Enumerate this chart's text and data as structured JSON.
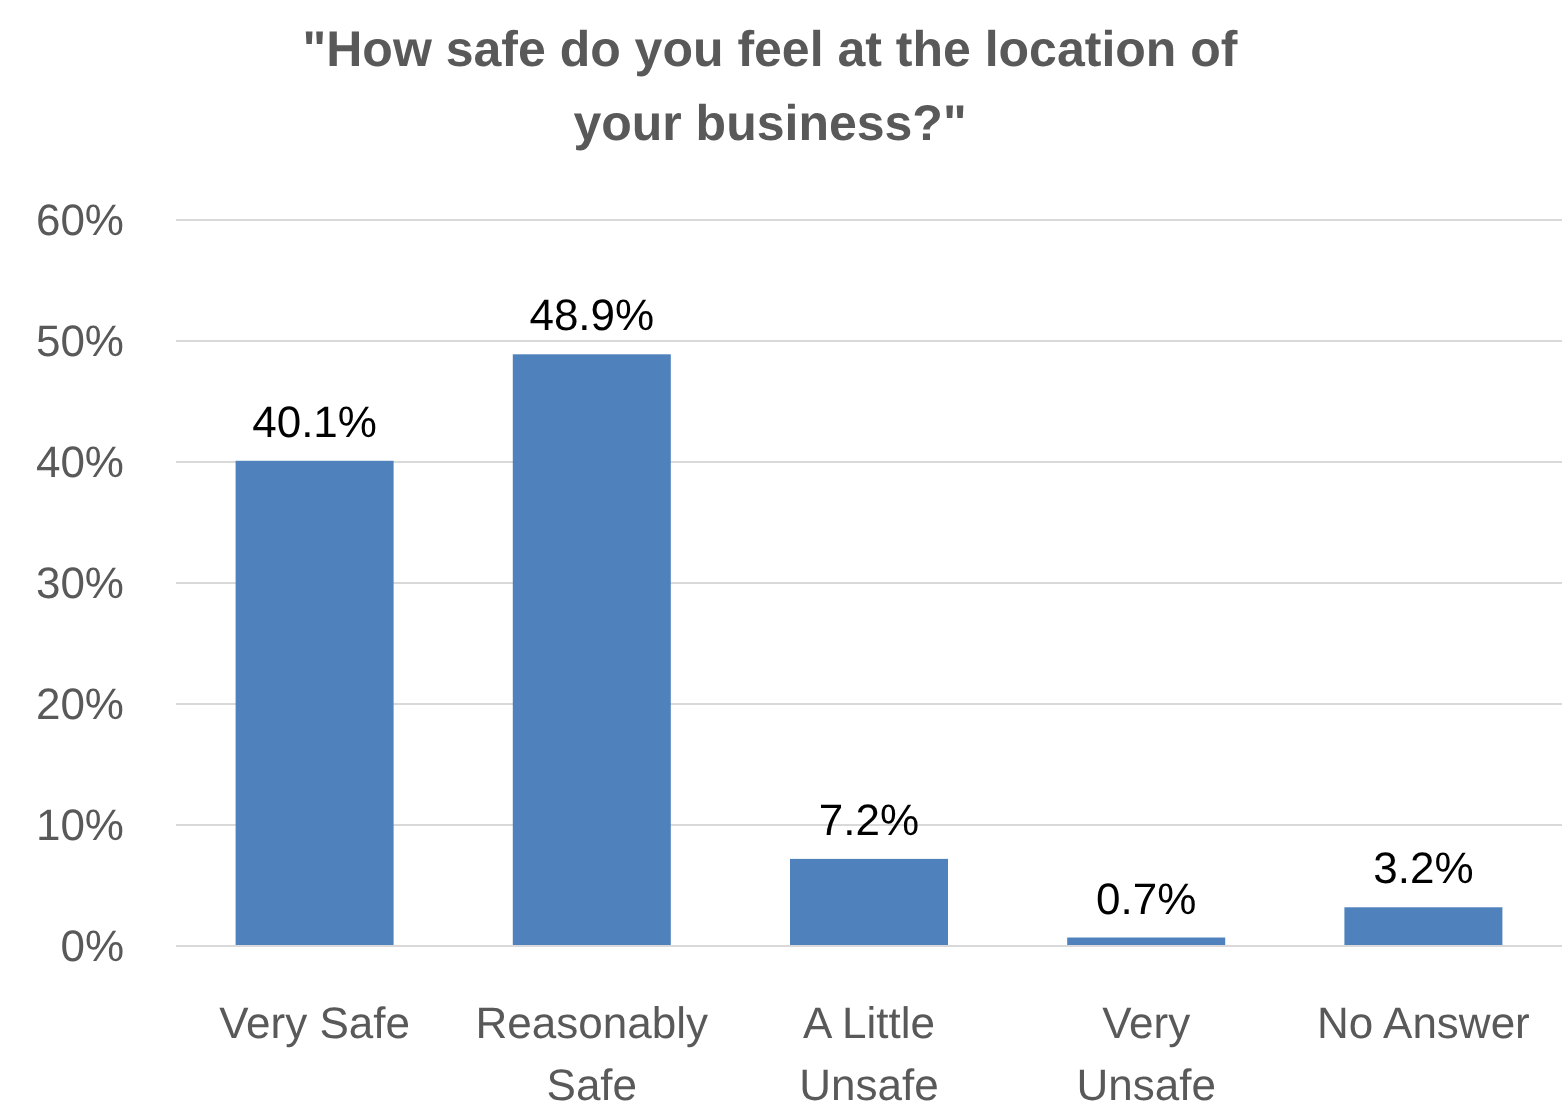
{
  "chart_data": {
    "type": "bar",
    "title": "\"How safe do you feel at the location of your business?\"",
    "categories": [
      "Very Safe",
      "Reasonably Safe",
      "A Little Unsafe",
      "Very Unsafe",
      "No Answer"
    ],
    "values": [
      40.1,
      48.9,
      7.2,
      0.7,
      3.2
    ],
    "value_labels": [
      "40.1%",
      "48.9%",
      "7.2%",
      "0.7%",
      "3.2%"
    ],
    "color": "#4f81bd",
    "ylim": [
      0,
      60
    ],
    "yticks": [
      {
        "value": 0,
        "label": "0%"
      },
      {
        "value": 10,
        "label": "10%"
      },
      {
        "value": 20,
        "label": "20%"
      },
      {
        "value": 30,
        "label": "30%"
      },
      {
        "value": 40,
        "label": "40%"
      },
      {
        "value": 50,
        "label": "50%"
      },
      {
        "value": 60,
        "label": "60%"
      }
    ],
    "grid": "y"
  }
}
